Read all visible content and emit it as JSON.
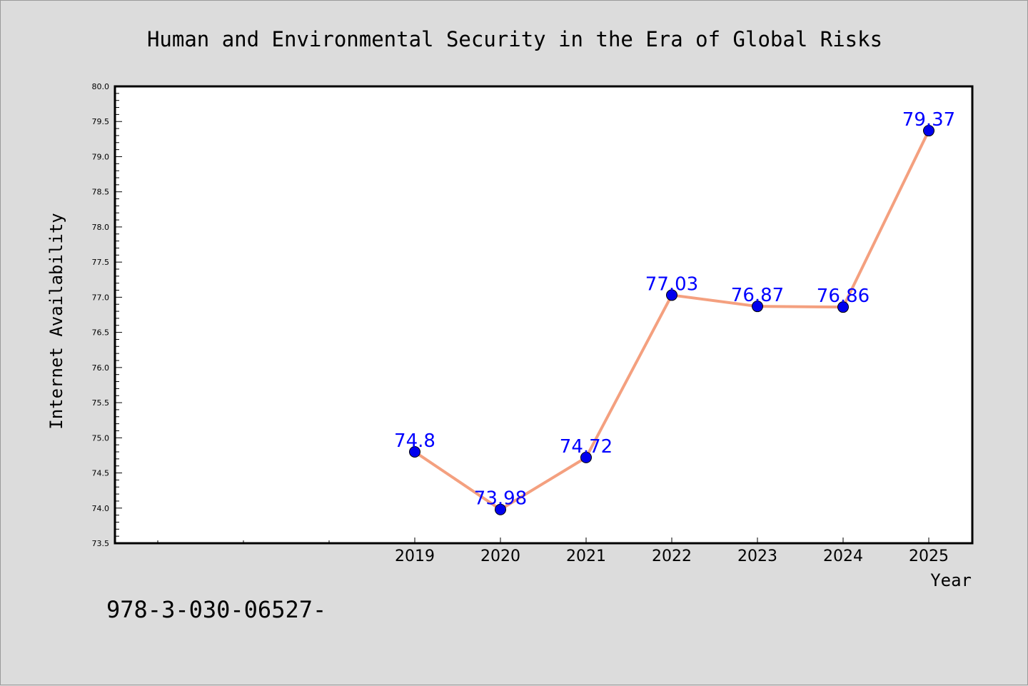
{
  "chart_data": {
    "type": "line",
    "title": "Human and Environmental Security in the Era of Global Risks",
    "xlabel": "Year",
    "ylabel": "Internet Availability",
    "x": [
      "2019",
      "2020",
      "2021",
      "2022",
      "2023",
      "2024",
      "2025"
    ],
    "series": [
      {
        "values": [
          74.8,
          73.98,
          74.72,
          77.03,
          76.87,
          76.86,
          79.37
        ],
        "labels": [
          "74.8",
          "73.98",
          "74.72",
          "77.03",
          "76.87",
          "76.86",
          "79.37"
        ],
        "line_color": "#f4a07f",
        "marker_color": "#0000ee",
        "label_color": "#0000ff"
      }
    ],
    "ylim": [
      73.5,
      80.0
    ],
    "yticks": [
      "73.5",
      "74.0",
      "74.5",
      "75.0",
      "75.5",
      "76.0",
      "76.5",
      "77.0",
      "77.5",
      "78.0",
      "78.5",
      "79.0",
      "79.5",
      "80.0"
    ],
    "grid": false,
    "background": "#dcdcdc",
    "plot_background": "#ffffff"
  },
  "footer": {
    "text": "978-3-030-06527-"
  }
}
